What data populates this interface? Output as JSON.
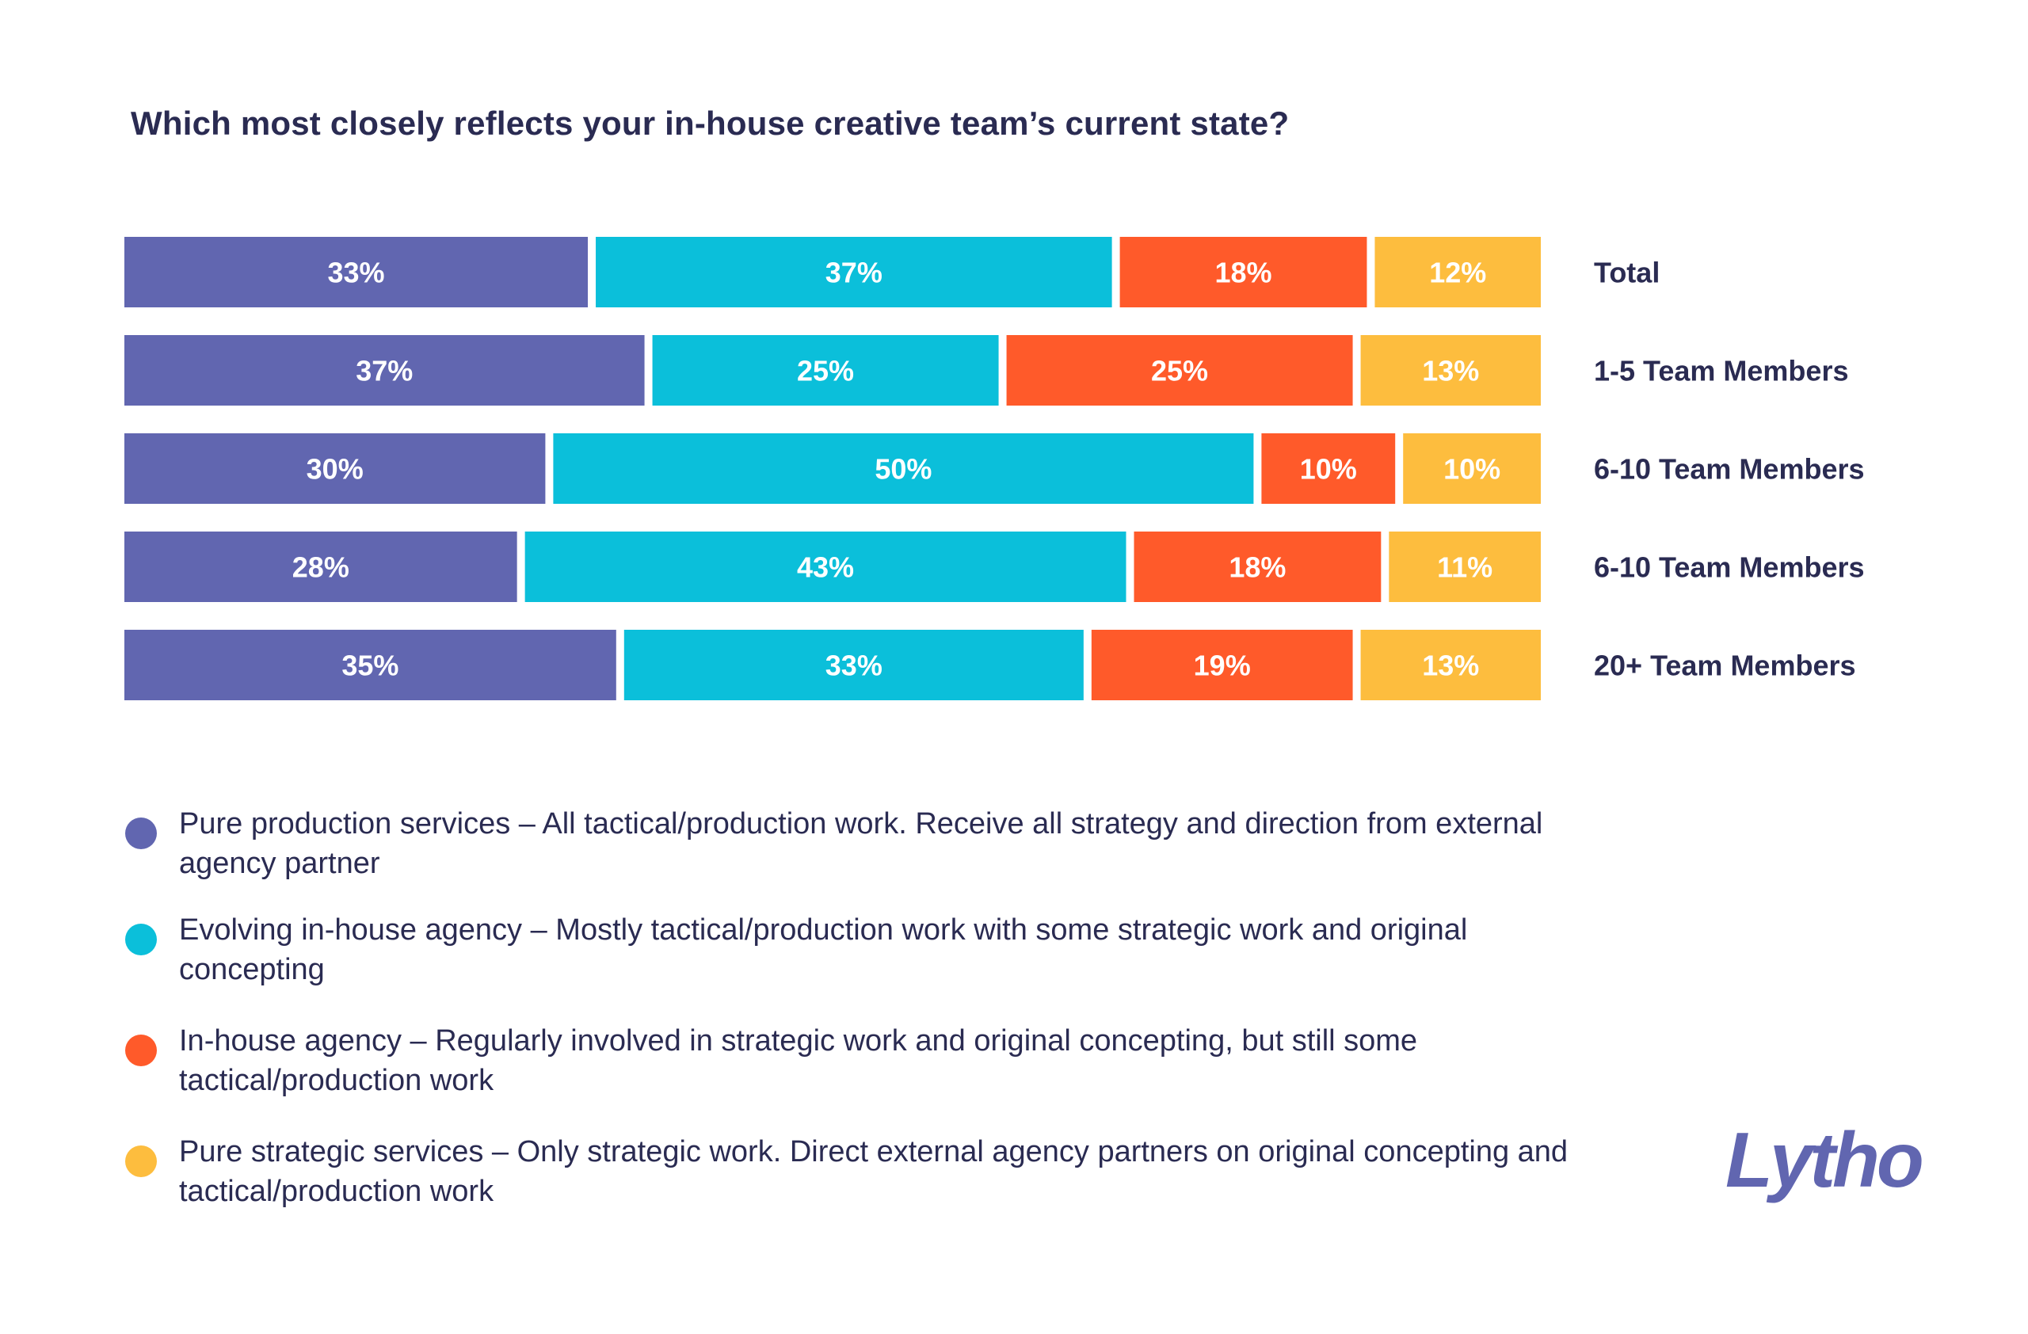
{
  "chart_data": {
    "type": "bar",
    "orientation": "horizontal",
    "stacked": true,
    "title": "Which most closely reflects your in-house creative team’s current state?",
    "categories": [
      "Total",
      "1-5 Team Members",
      "6-10 Team Members",
      "6-10 Team Members",
      "20+ Team Members"
    ],
    "series": [
      {
        "name": "Pure production services – All tactical/production work. Receive all strategy and direction from external agency partner",
        "color": "#6166b0",
        "values": [
          33,
          37,
          30,
          28,
          35
        ],
        "labels": [
          "33%",
          "37%",
          "30%",
          "28%",
          "35%"
        ]
      },
      {
        "name": "Evolving in-house agency – Mostly tactical/production work with some strategic work and original concepting",
        "color": "#0bbfda",
        "values": [
          37,
          25,
          50,
          43,
          33
        ],
        "labels": [
          "37%",
          "25%",
          "50%",
          "43%",
          "33%"
        ]
      },
      {
        "name": "In-house agency – Regularly involved in strategic work and original concepting, but still some tactical/production work",
        "color": "#ff5a2a",
        "values": [
          18,
          25,
          10,
          18,
          19
        ],
        "labels": [
          "18%",
          "25%",
          "10%",
          "18%",
          "19%"
        ]
      },
      {
        "name": "Pure strategic services – Only strategic work. Direct external agency partners on original concepting and tactical/production work",
        "color": "#fdbd3e",
        "values": [
          12,
          13,
          10,
          11,
          13
        ],
        "labels": [
          "12%",
          "13%",
          "10%",
          "11%",
          "13%"
        ]
      }
    ],
    "xlim": [
      0,
      100
    ],
    "grid": false,
    "legend_position": "bottom"
  },
  "logo": {
    "text": "Lytho",
    "color": "#6166b0"
  }
}
